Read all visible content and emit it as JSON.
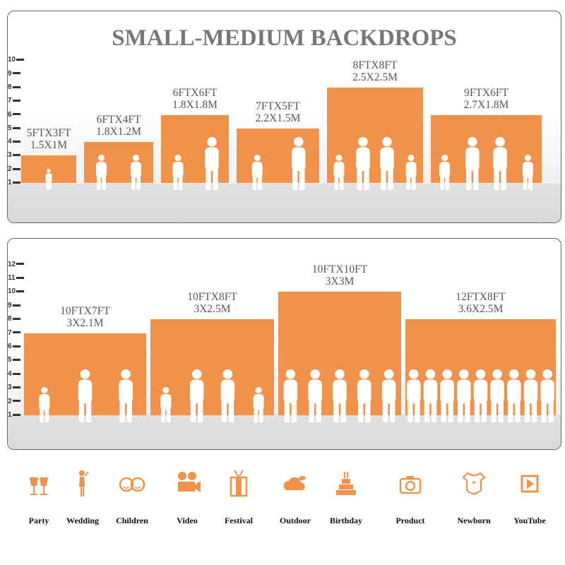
{
  "title": "SMALL-MEDIUM BACKDROPS",
  "accent_color": "#f0924a",
  "panel_top": {
    "axis_ticks": [
      "10",
      "9",
      "8",
      "7",
      "6",
      "5",
      "4",
      "3",
      "2",
      "1"
    ],
    "backdrops": [
      {
        "size_ft": "5FTX3FT",
        "size_m": "1.5X1M",
        "height_units": 3
      },
      {
        "size_ft": "6FTX4FT",
        "size_m": "1.8X1.2M",
        "height_units": 4
      },
      {
        "size_ft": "6FTX6FT",
        "size_m": "1.8X1.8M",
        "height_units": 6
      },
      {
        "size_ft": "7FTX5FT",
        "size_m": "2.2X1.5M",
        "height_units": 5
      },
      {
        "size_ft": "8FTX8FT",
        "size_m": "2.5X2.5M",
        "height_units": 8
      },
      {
        "size_ft": "9FTX6FT",
        "size_m": "2.7X1.8M",
        "height_units": 6
      }
    ]
  },
  "panel_bottom": {
    "axis_ticks": [
      "12",
      "11",
      "10",
      "9",
      "8",
      "7",
      "6",
      "5",
      "4",
      "3",
      "2",
      "1"
    ],
    "backdrops": [
      {
        "size_ft": "10FTX7FT",
        "size_m": "3X2.1M",
        "height_units": 7
      },
      {
        "size_ft": "10FTX8FT",
        "size_m": "3X2.5M",
        "height_units": 8
      },
      {
        "size_ft": "10FTX10FT",
        "size_m": "3X3M",
        "height_units": 10
      },
      {
        "size_ft": "12FTX8FT",
        "size_m": "3.6X2.5M",
        "height_units": 8
      }
    ]
  },
  "uses": [
    {
      "label": "Party",
      "icon": "wine-glasses-icon"
    },
    {
      "label": "Wedding",
      "icon": "couple-icon"
    },
    {
      "label": "Children",
      "icon": "children-faces-icon"
    },
    {
      "label": "Video",
      "icon": "movie-camera-icon"
    },
    {
      "label": "Festival",
      "icon": "gift-box-icon"
    },
    {
      "label": "Outdoor",
      "icon": "cloud-icon"
    },
    {
      "label": "Birthday",
      "icon": "birthday-cake-icon"
    },
    {
      "label": "Product",
      "icon": "camera-icon"
    },
    {
      "label": "Newborn",
      "icon": "baby-onesie-icon"
    },
    {
      "label": "YouTube",
      "icon": "play-button-icon"
    }
  ]
}
